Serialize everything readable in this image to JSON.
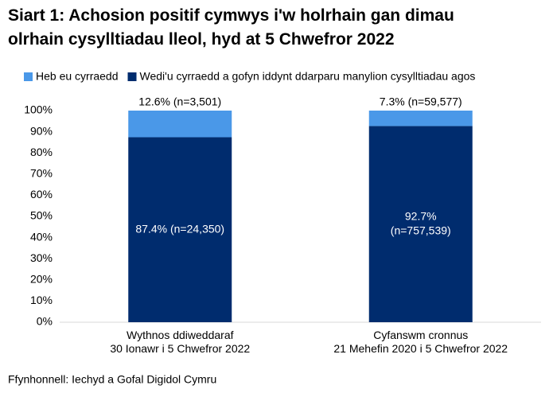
{
  "chart_data": {
    "type": "stacked_bar",
    "title": "Siart 1: Achosion positif cymwys i'w holrhain gan dimau\nolrhain cysylltiadau lleol, hyd at 5 Chwefror 2022",
    "categories": [
      "Wythnos ddiweddaraf\n30 Ionawr i 5 Chwefror 2022",
      "Cyfanswm cronnus\n21 Mehefin 2020 i 5 Chwefror 2022"
    ],
    "series": [
      {
        "name": "Wedi'u cyrraedd a gofyn iddynt ddarparu manylion cysylltiadau agos",
        "color": "#002c6e",
        "values": [
          87.4,
          92.7
        ],
        "value_labels": [
          "87.4% (n=24,350)",
          "92.7%\n(n=757,539)"
        ]
      },
      {
        "name": "Heb eu cyrraedd",
        "color": "#4a98e8",
        "values": [
          12.6,
          7.3
        ],
        "value_labels": [
          "12.6% (n=3,501)",
          "7.3% (n=59,577)"
        ]
      }
    ],
    "ylim": [
      0,
      100
    ],
    "yticks": [
      {
        "value": 0,
        "label": "0%"
      },
      {
        "value": 10,
        "label": "10%"
      },
      {
        "value": 20,
        "label": "20%"
      },
      {
        "value": 30,
        "label": "30%"
      },
      {
        "value": 40,
        "label": "40%"
      },
      {
        "value": 50,
        "label": "50%"
      },
      {
        "value": 60,
        "label": "60%"
      },
      {
        "value": 70,
        "label": "70%"
      },
      {
        "value": 80,
        "label": "80%"
      },
      {
        "value": 90,
        "label": "90%"
      },
      {
        "value": 100,
        "label": "100%"
      }
    ],
    "grid": false,
    "source": "Ffynhonnell: Iechyd a Gofal Digidol Cymru"
  }
}
